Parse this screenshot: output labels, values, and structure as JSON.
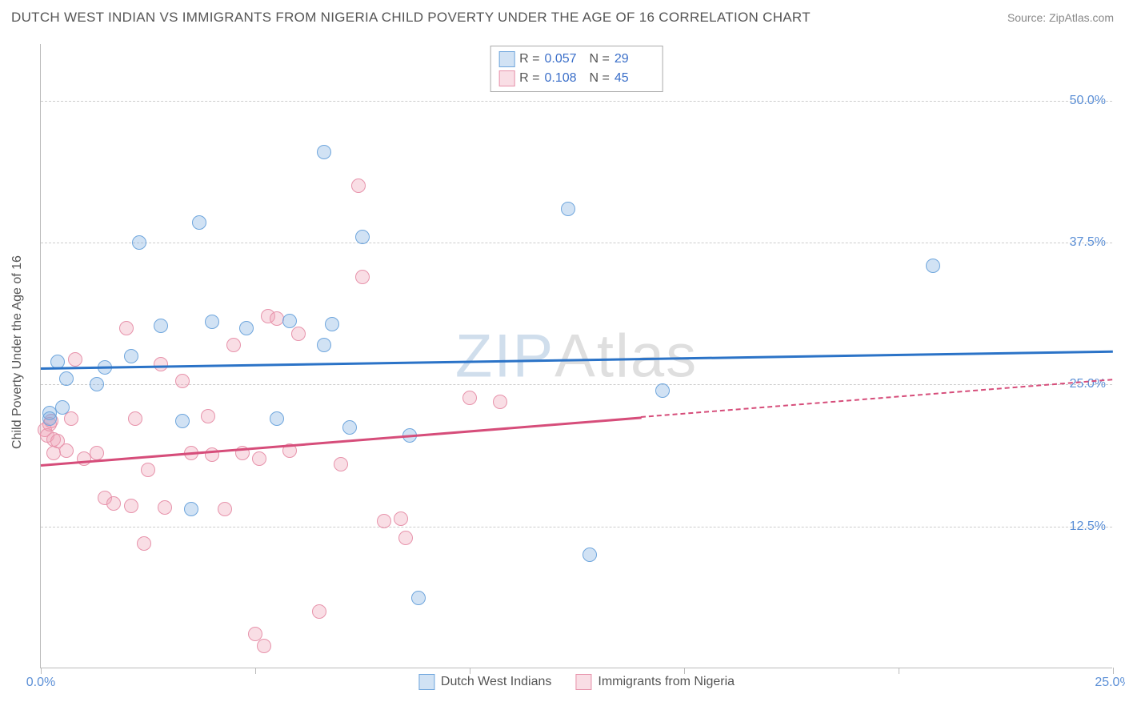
{
  "title": "DUTCH WEST INDIAN VS IMMIGRANTS FROM NIGERIA CHILD POVERTY UNDER THE AGE OF 16 CORRELATION CHART",
  "source": "Source: ZipAtlas.com",
  "y_axis_label": "Child Poverty Under the Age of 16",
  "watermark": {
    "part1": "ZIP",
    "part2": "Atlas"
  },
  "chart": {
    "type": "scatter",
    "background_color": "#ffffff",
    "grid_color": "#cccccc",
    "axis_color": "#bbbbbb",
    "tick_label_color": "#5b8fd6",
    "xlim": [
      0,
      25
    ],
    "ylim": [
      0,
      55
    ],
    "y_ticks": [
      {
        "value": 12.5,
        "label": "12.5%"
      },
      {
        "value": 25.0,
        "label": "25.0%"
      },
      {
        "value": 37.5,
        "label": "37.5%"
      },
      {
        "value": 50.0,
        "label": "50.0%"
      }
    ],
    "x_ticks": [
      0,
      5,
      10,
      15,
      20,
      25
    ],
    "x_tick_labels": {
      "0": "0.0%",
      "25": "25.0%"
    },
    "marker_radius": 9,
    "marker_border_width": 1.5,
    "series": [
      {
        "name": "Dutch West Indians",
        "fill": "rgba(122,172,224,0.35)",
        "stroke": "#6fa6dd",
        "trend_color": "#2b73c7",
        "r": "0.057",
        "n": "29",
        "trend": {
          "x1": 0,
          "y1": 26.5,
          "x2": 25,
          "y2": 28.0,
          "solid_until_x": 25
        },
        "points": [
          [
            0.2,
            22.5
          ],
          [
            0.2,
            22.0
          ],
          [
            0.4,
            27.0
          ],
          [
            0.5,
            23.0
          ],
          [
            0.6,
            25.5
          ],
          [
            1.3,
            25.0
          ],
          [
            1.5,
            26.5
          ],
          [
            2.1,
            27.5
          ],
          [
            2.3,
            37.5
          ],
          [
            2.8,
            30.2
          ],
          [
            3.3,
            21.8
          ],
          [
            3.5,
            14.0
          ],
          [
            3.7,
            39.3
          ],
          [
            4.0,
            30.5
          ],
          [
            4.8,
            30.0
          ],
          [
            5.5,
            22.0
          ],
          [
            5.8,
            30.6
          ],
          [
            6.6,
            28.5
          ],
          [
            6.6,
            45.5
          ],
          [
            6.8,
            30.3
          ],
          [
            7.2,
            21.2
          ],
          [
            7.5,
            38.0
          ],
          [
            8.6,
            20.5
          ],
          [
            8.8,
            6.2
          ],
          [
            12.3,
            40.5
          ],
          [
            12.8,
            10.0
          ],
          [
            14.5,
            24.5
          ],
          [
            20.8,
            35.5
          ]
        ]
      },
      {
        "name": "Immigrants from Nigeria",
        "fill": "rgba(238,160,180,0.35)",
        "stroke": "#e793ab",
        "trend_color": "#d64d7a",
        "r": "0.108",
        "n": "45",
        "trend": {
          "x1": 0,
          "y1": 18.0,
          "x2": 25,
          "y2": 25.5,
          "solid_until_x": 14
        },
        "points": [
          [
            0.1,
            21.0
          ],
          [
            0.15,
            20.5
          ],
          [
            0.2,
            21.5
          ],
          [
            0.25,
            21.8
          ],
          [
            0.3,
            19.0
          ],
          [
            0.3,
            20.2
          ],
          [
            0.4,
            20.0
          ],
          [
            0.6,
            19.2
          ],
          [
            0.7,
            22.0
          ],
          [
            0.8,
            27.2
          ],
          [
            1.0,
            18.5
          ],
          [
            1.3,
            19.0
          ],
          [
            1.5,
            15.0
          ],
          [
            1.7,
            14.5
          ],
          [
            2.0,
            30.0
          ],
          [
            2.1,
            14.3
          ],
          [
            2.2,
            22.0
          ],
          [
            2.4,
            11.0
          ],
          [
            2.5,
            17.5
          ],
          [
            2.8,
            26.8
          ],
          [
            2.9,
            14.2
          ],
          [
            3.3,
            25.3
          ],
          [
            3.5,
            19.0
          ],
          [
            3.9,
            22.2
          ],
          [
            4.0,
            18.8
          ],
          [
            4.3,
            14.0
          ],
          [
            4.5,
            28.5
          ],
          [
            4.7,
            19.0
          ],
          [
            5.0,
            3.0
          ],
          [
            5.1,
            18.5
          ],
          [
            5.2,
            2.0
          ],
          [
            5.3,
            31.0
          ],
          [
            5.5,
            30.8
          ],
          [
            5.8,
            19.2
          ],
          [
            6.0,
            29.5
          ],
          [
            6.5,
            5.0
          ],
          [
            7.0,
            18.0
          ],
          [
            7.4,
            42.5
          ],
          [
            7.5,
            34.5
          ],
          [
            8.0,
            13.0
          ],
          [
            8.4,
            13.2
          ],
          [
            8.5,
            11.5
          ],
          [
            10.0,
            23.8
          ],
          [
            10.7,
            23.5
          ]
        ]
      }
    ],
    "legend_top": {
      "r_label": "R =",
      "n_label": "N ="
    }
  }
}
